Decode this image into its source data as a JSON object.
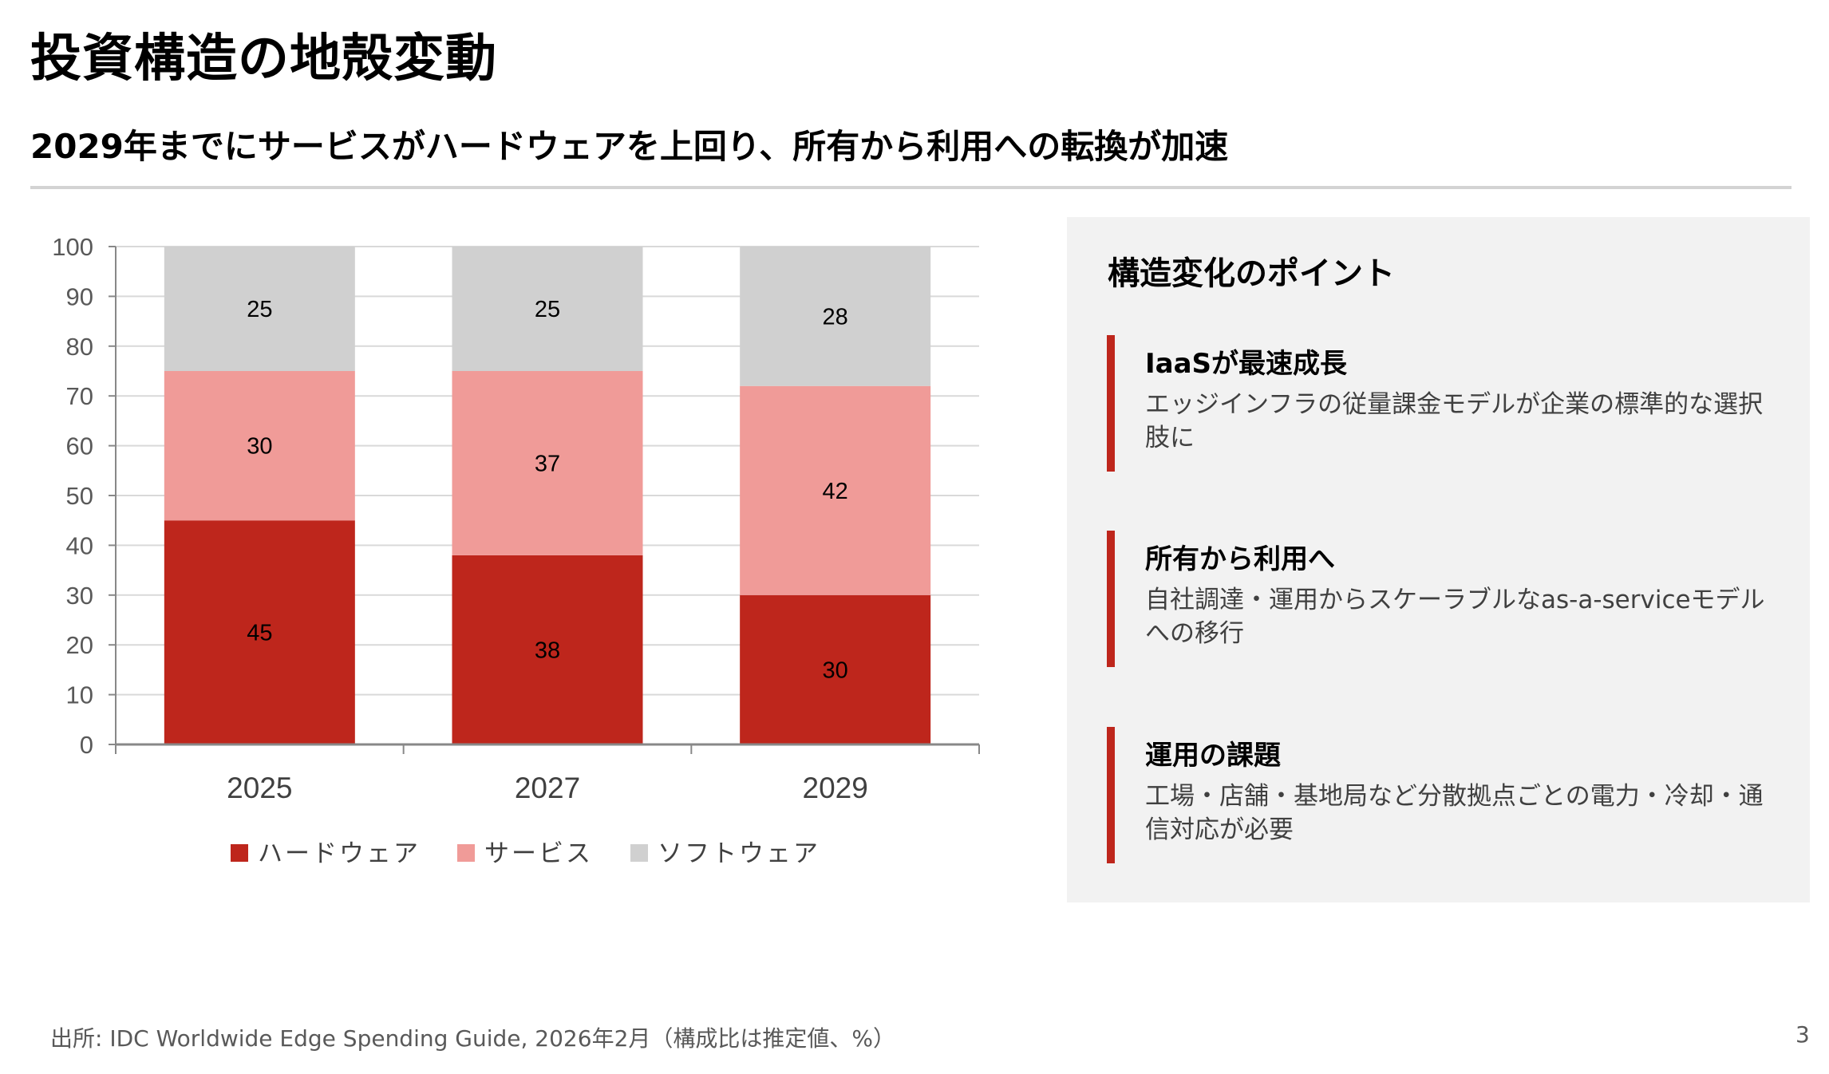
{
  "header": {
    "title": "投資構造の地殻変動",
    "subtitle": "2029年までにサービスがハードウェアを上回り、所有から利用への転換が加速"
  },
  "chart_data": {
    "type": "bar",
    "stacked": true,
    "categories": [
      "2025",
      "2027",
      "2029"
    ],
    "series": [
      {
        "name": "ハードウェア",
        "values": [
          45,
          38,
          30
        ],
        "color": "#be261c"
      },
      {
        "name": "サービス",
        "values": [
          30,
          37,
          42
        ],
        "color": "#f09b98"
      },
      {
        "name": "ソフトウェア",
        "values": [
          25,
          25,
          28
        ],
        "color": "#d0d0d0"
      }
    ],
    "ylim": [
      0,
      100
    ],
    "yticks": [
      0,
      10,
      20,
      30,
      40,
      50,
      60,
      70,
      80,
      90,
      100
    ],
    "grid": true,
    "legend": "bottom",
    "data_labels": true
  },
  "panel": {
    "title": "構造変化のポイント",
    "items": [
      {
        "heading": "IaaSが最速成長",
        "body": "エッジインフラの従量課金モデルが企業の標準的な選択肢に"
      },
      {
        "heading": "所有から利用へ",
        "body": "自社調達・運用からスケーラブルなas-a-serviceモデルへの移行"
      },
      {
        "heading": "運用の課題",
        "body": "工場・店舗・基地局など分散拠点ごとの電力・冷却・通信対応が必要"
      }
    ],
    "accent_color": "#be261c"
  },
  "footer": {
    "source": "出所: IDC Worldwide Edge Spending Guide, 2026年2月（構成比は推定値、%）",
    "page_number": "3"
  }
}
